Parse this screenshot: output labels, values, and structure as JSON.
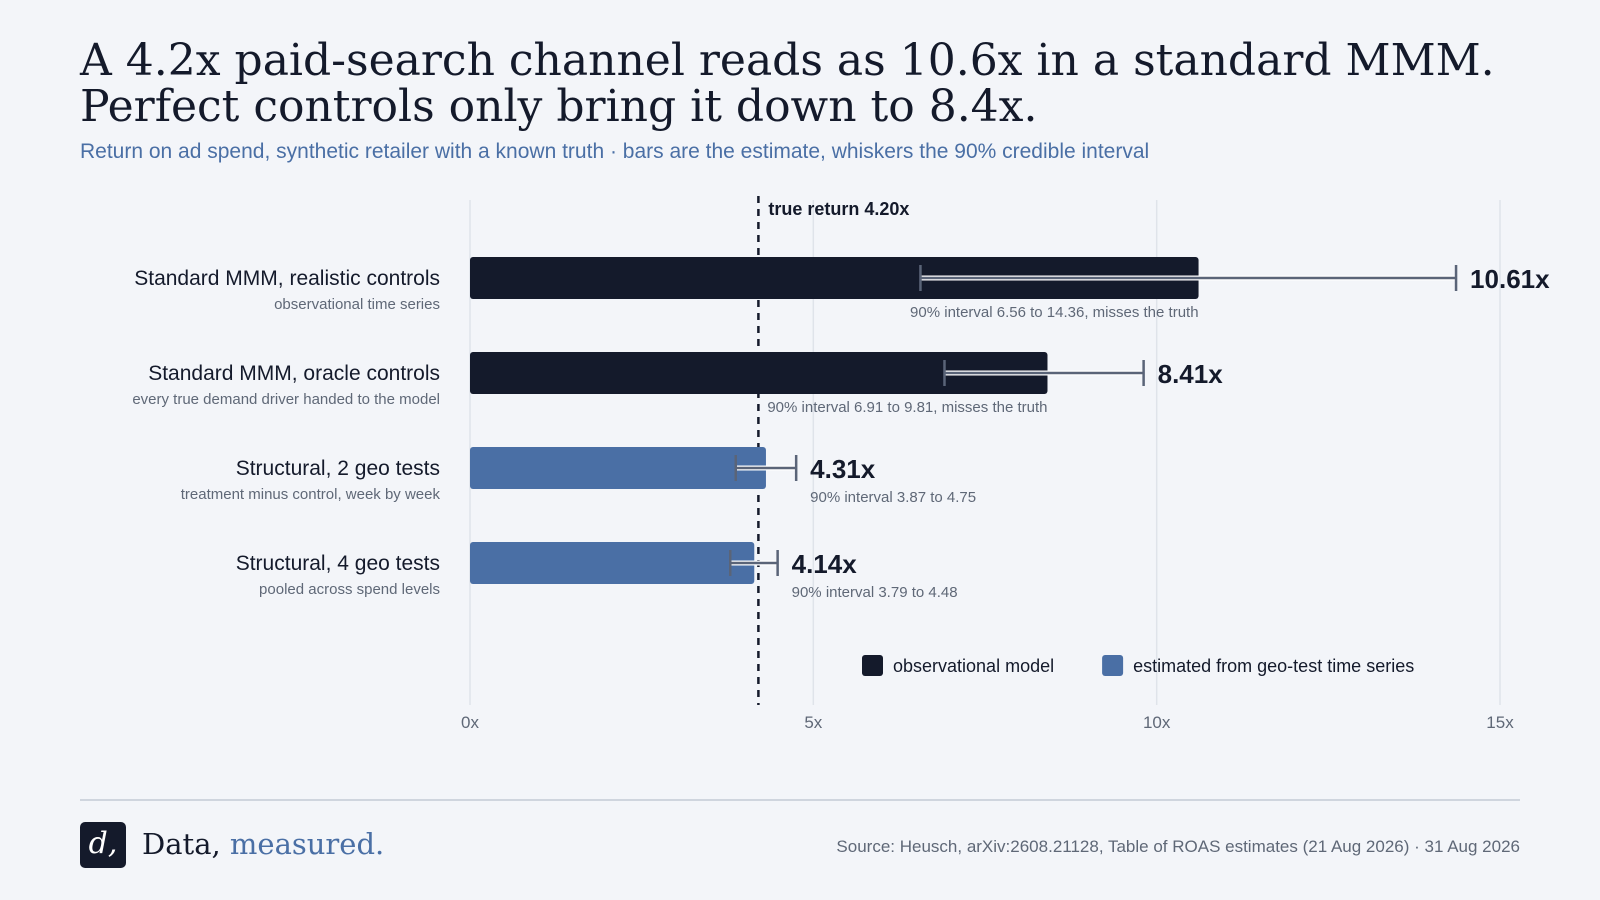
{
  "headline": {
    "line1": "A 4.2x paid-search channel reads as 10.6x in a standard MMM.",
    "line2": "Perfect controls only bring it down to 8.4x."
  },
  "subtitle": "Return on ad spend, synthetic retailer with a known truth · bars are the estimate, whiskers the 90% credible interval",
  "colors": {
    "observational": "#141a2b",
    "structural": "#4a6fa5",
    "whisker": "#5a6478",
    "reference_line": "#141a2b",
    "gridline": "#dfe3ea",
    "label_text": "#141a2b",
    "sublabel_text": "#5f6877",
    "accent": "#4a6fa5"
  },
  "chart_data": {
    "type": "bar",
    "orientation": "horizontal",
    "title": "",
    "xlabel": "",
    "ylabel": "",
    "xlim": [
      0,
      15
    ],
    "xticks": [
      0,
      5,
      10,
      15
    ],
    "xtick_labels": [
      "0x",
      "5x",
      "10x",
      "15x"
    ],
    "grid": "vertical",
    "reference_line": {
      "value": 4.2,
      "label": "true return 4.20x"
    },
    "rows": [
      {
        "label": "Standard MMM, realistic controls",
        "sublabel": "observational time series",
        "value": 10.61,
        "value_label": "10.61x",
        "interval": [
          6.56,
          14.36
        ],
        "interval_label": "90% interval 6.56 to 14.36, misses the truth",
        "group": "observational"
      },
      {
        "label": "Standard MMM, oracle controls",
        "sublabel": "every true demand driver handed to the model",
        "value": 8.41,
        "value_label": "8.41x",
        "interval": [
          6.91,
          9.81
        ],
        "interval_label": "90% interval 6.91 to 9.81, misses the truth",
        "group": "observational"
      },
      {
        "label": "Structural, 2 geo tests",
        "sublabel": "treatment minus control, week by week",
        "value": 4.31,
        "value_label": "4.31x",
        "interval": [
          3.87,
          4.75
        ],
        "interval_label": "90% interval 3.87 to 4.75",
        "group": "structural"
      },
      {
        "label": "Structural, 4 geo tests",
        "sublabel": "pooled across spend levels",
        "value": 4.14,
        "value_label": "4.14x",
        "interval": [
          3.79,
          4.48
        ],
        "interval_label": "90% interval 3.79 to 4.48",
        "group": "structural"
      }
    ],
    "legend": {
      "position": "bottom-right",
      "items": [
        {
          "key": "observational",
          "label": "observational model"
        },
        {
          "key": "structural",
          "label": "estimated from geo-test time series"
        }
      ]
    }
  },
  "footer": {
    "logo_text": "d,",
    "brand_name": "Data,",
    "brand_accent": "measured.",
    "source": "Source: Heusch, arXiv:2608.21128, Table of ROAS estimates (21 Aug 2026) · 31 Aug 2026"
  }
}
